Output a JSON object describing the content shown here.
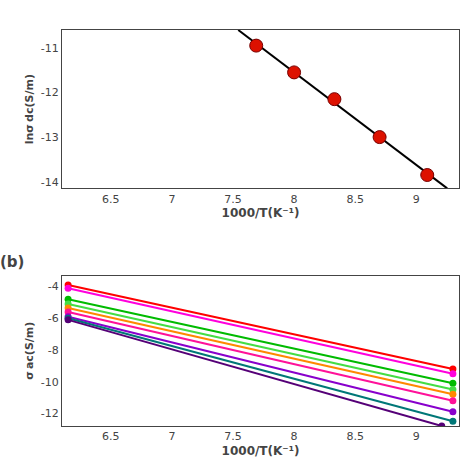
{
  "chart_data": [
    {
      "type": "scatter",
      "xlabel": "1000/T(K⁻¹)",
      "ylabel": "lnσ dc(S/m)",
      "xlim": [
        6.1,
        9.35
      ],
      "ylim": [
        -14.15,
        -10.6
      ],
      "xticks": [
        6.5,
        7.0,
        7.5,
        8.0,
        8.5,
        9.0
      ],
      "yticks": [
        -11,
        -12,
        -13,
        -14
      ],
      "grid": false,
      "series": [
        {
          "type": "line",
          "color": "black",
          "x": [
            7.5429,
            9.2533
          ],
          "values": [
            -10.6,
            -14.15
          ]
        },
        {
          "type": "scatter",
          "color": "#dd1100",
          "marker": "circle",
          "x": [
            7.69,
            8.0,
            8.33,
            8.7,
            9.09
          ],
          "values": [
            -10.95,
            -11.55,
            -12.15,
            -13.0,
            -13.85
          ]
        }
      ]
    },
    {
      "type": "line",
      "xlabel": "1000/T(K⁻¹)",
      "ylabel": "σ ac(S/m)",
      "xlim": [
        6.1,
        9.35
      ],
      "ylim": [
        -12.8,
        -3.3
      ],
      "xticks": [
        6.5,
        7.0,
        7.5,
        8.0,
        8.5,
        9.0
      ],
      "yticks": [
        -4,
        -6,
        -8,
        -10,
        -12
      ],
      "grid": false,
      "annotations": [
        "(b)"
      ],
      "series": [
        {
          "color": "#ff0000",
          "marker": "circle",
          "x": [
            6.15,
            9.3
          ],
          "values": [
            -3.9,
            -9.2
          ]
        },
        {
          "color": "#ff00dd",
          "marker": "circle",
          "x": [
            6.15,
            9.3
          ],
          "values": [
            -4.1,
            -9.5
          ]
        },
        {
          "color": "#00bb00",
          "marker": "circle",
          "x": [
            6.15,
            9.3
          ],
          "values": [
            -4.8,
            -10.1
          ]
        },
        {
          "color": "#44dd44",
          "marker": "circle",
          "x": [
            6.15,
            9.3
          ],
          "values": [
            -5.1,
            -10.5
          ]
        },
        {
          "color": "#ff8800",
          "marker": "circle",
          "x": [
            6.15,
            9.3
          ],
          "values": [
            -5.35,
            -10.8
          ]
        },
        {
          "color": "#ff1199",
          "marker": "circle",
          "x": [
            6.15,
            9.3
          ],
          "values": [
            -5.6,
            -11.2
          ]
        },
        {
          "color": "#8800cc",
          "marker": "circle",
          "x": [
            6.15,
            9.3
          ],
          "values": [
            -5.9,
            -11.9
          ]
        },
        {
          "color": "#007777",
          "marker": "circle",
          "x": [
            6.15,
            9.3
          ],
          "values": [
            -6.0,
            -12.5
          ]
        },
        {
          "color": "#550077",
          "marker": "circle",
          "x": [
            6.15,
            9.2087
          ],
          "values": [
            -6.1,
            -12.8
          ]
        }
      ]
    }
  ]
}
